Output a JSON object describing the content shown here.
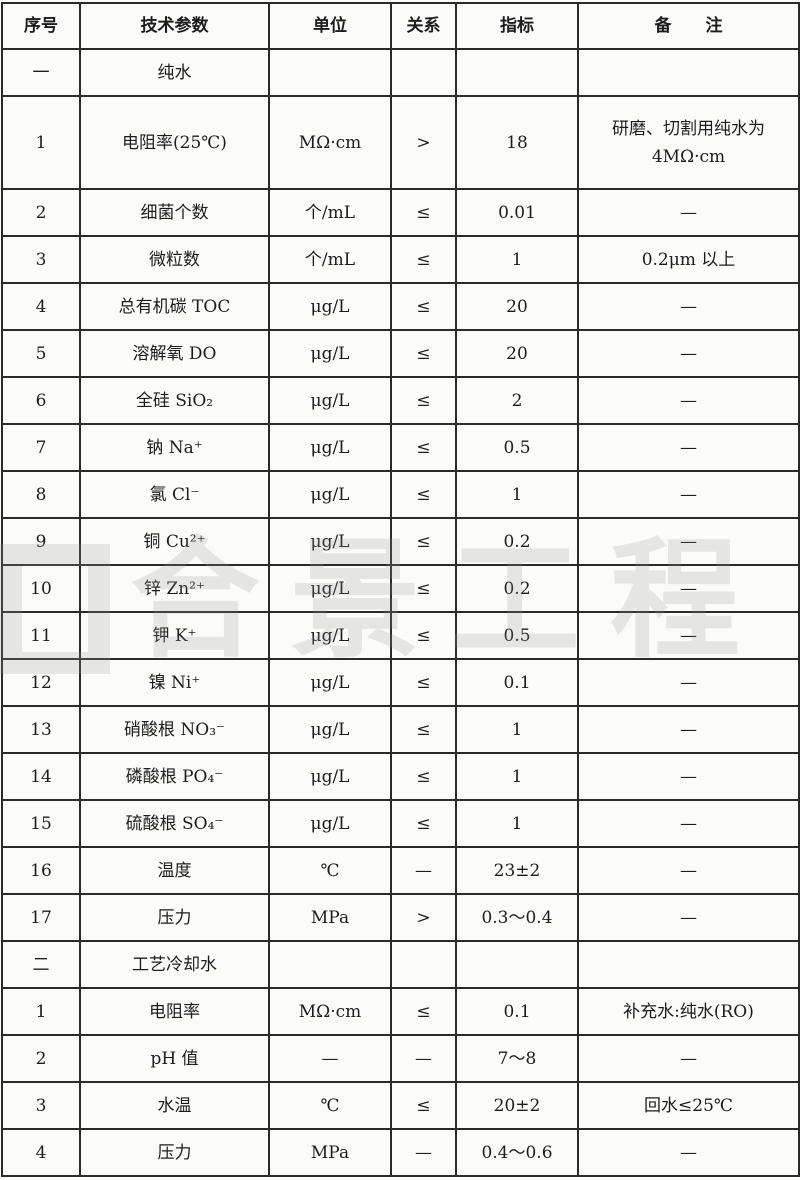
{
  "header": [
    "序号",
    "技术参数",
    "单位",
    "关系",
    "指标",
    "备　　注"
  ],
  "rows": [
    [
      "一",
      "纯水",
      "",
      "",
      "",
      ""
    ],
    [
      "1",
      "电阻率(25℃)",
      "MΩ·cm",
      ">",
      "18",
      "研磨、切割用纯水为4MΩ·cm"
    ],
    [
      "2",
      "细菌个数",
      "个/mL",
      "≤",
      "0.01",
      "—"
    ],
    [
      "3",
      "微粒数",
      "个/mL",
      "≤",
      "1",
      "0.2μm 以上"
    ],
    [
      "4",
      "总有机碳 TOC",
      "μg/L",
      "≤",
      "20",
      "—"
    ],
    [
      "5",
      "溶解氧 DO",
      "μg/L",
      "≤",
      "20",
      "—"
    ],
    [
      "6",
      "全硅 SiO₂",
      "μg/L",
      "≤",
      "2",
      "—"
    ],
    [
      "7",
      "钠 Na⁺",
      "μg/L",
      "≤",
      "0.5",
      "—"
    ],
    [
      "8",
      "氯 Cl⁻",
      "μg/L",
      "≤",
      "1",
      "—"
    ],
    [
      "9",
      "铜 Cu²⁺",
      "μg/L",
      "≤",
      "0.2",
      "—"
    ],
    [
      "10",
      "锌 Zn²⁺",
      "μg/L",
      "≤",
      "0.2",
      "—"
    ],
    [
      "11",
      "钾 K⁺",
      "μg/L",
      "≤",
      "0.5",
      "—"
    ],
    [
      "12",
      "镍 Ni⁺",
      "μg/L",
      "≤",
      "0.1",
      "—"
    ],
    [
      "13",
      "硝酸根 NO₃⁻",
      "μg/L",
      "≤",
      "1",
      "—"
    ],
    [
      "14",
      "磷酸根 PO₄⁻",
      "μg/L",
      "≤",
      "1",
      "—"
    ],
    [
      "15",
      "硫酸根 SO₄⁻",
      "μg/L",
      "≤",
      "1",
      "—"
    ],
    [
      "16",
      "温度",
      "℃",
      "—",
      "23±2",
      "—"
    ],
    [
      "17",
      "压力",
      "MPa",
      ">",
      "0.3～0.4",
      "—"
    ],
    [
      "二",
      "工艺冷却水",
      "",
      "",
      "",
      ""
    ],
    [
      "1",
      "电阻率",
      "MΩ·cm",
      "≤",
      "0.1",
      "补充水:纯水(RO)"
    ],
    [
      "2",
      "pH 值",
      "—",
      "—",
      "7～8",
      "—"
    ],
    [
      "3",
      "水温",
      "℃",
      "≤",
      "20±2",
      "回水≤25℃"
    ],
    [
      "4",
      "压力",
      "MPa",
      "—",
      "0.4～0.6",
      "—"
    ]
  ],
  "watermark": "合景工程"
}
